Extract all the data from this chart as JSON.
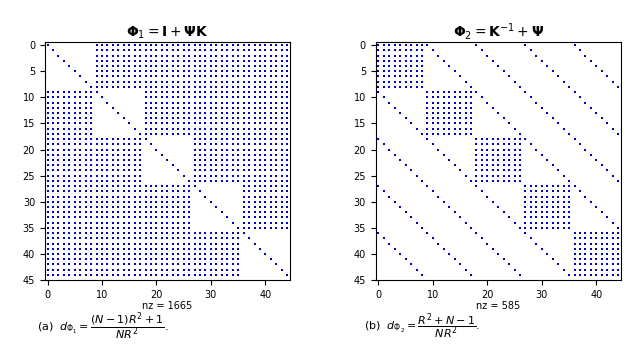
{
  "N": 5,
  "R": 3,
  "title1": "$\\mathbf{\\Phi}_1 = \\mathbf{I} + \\mathbf{\\Psi}\\mathbf{K}$",
  "title2": "$\\mathbf{\\Phi}_2 = \\mathbf{K}^{-1} + \\mathbf{\\Psi}$",
  "nz1": 1665,
  "nz2": 585,
  "caption1": "(a)  $d_{\\Phi_1} = \\dfrac{(N-1)R^2+1}{NR^2}$.",
  "caption2": "(b)  $d_{\\Phi_2} = \\dfrac{R^2+N-1}{NR^2}$.",
  "dot_color": "#0000cc",
  "bg_color": "#ffffff",
  "marker_size": 1.5
}
